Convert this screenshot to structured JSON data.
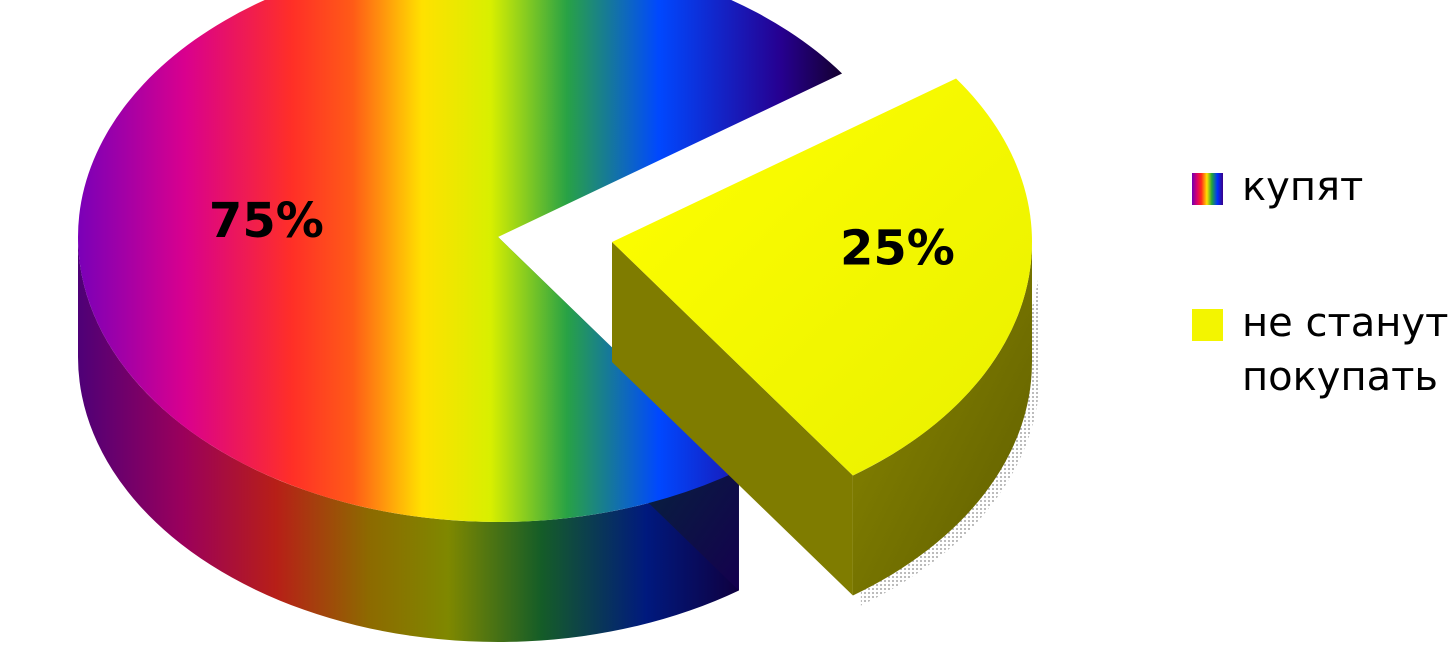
{
  "chart_data": {
    "type": "pie",
    "subtype": "3d-exploded",
    "title": "",
    "categories": [
      "купят",
      "не станут покупать"
    ],
    "values": [
      75,
      25
    ],
    "data_labels": [
      "75%",
      "25%"
    ],
    "legend_position": "right",
    "colors": {
      "купят": "rainbow-gradient",
      "не станут покупать": "#f3f500"
    },
    "exploded_slice": "не станут покупать"
  },
  "legend": [
    {
      "label": "купят",
      "swatch": "rainbow-gradient"
    },
    {
      "label": "не станут покупать",
      "swatch": "#f3f500"
    }
  ]
}
